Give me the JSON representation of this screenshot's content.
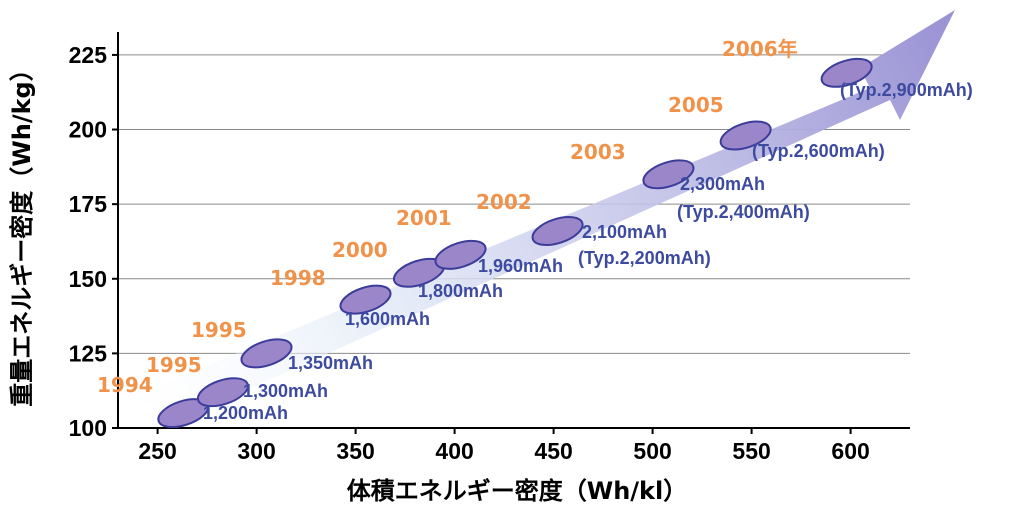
{
  "chart_data": {
    "type": "scatter",
    "title": "",
    "xlabel": "体積エネルギー密度（Wh/kl）",
    "ylabel": "重量エネルギー密度（Wh/kg）",
    "xlim": [
      230,
      630
    ],
    "ylim": [
      100,
      230
    ],
    "xticks": [
      "250",
      "300",
      "350",
      "400",
      "450",
      "500",
      "550",
      "600"
    ],
    "yticks": [
      "100",
      "125",
      "150",
      "175",
      "200",
      "225"
    ],
    "grid": "horizontal",
    "trend": "arrow",
    "colors": {
      "marker_fill": "#9b86c9",
      "marker_stroke": "#3c3c9a",
      "year_label": "#f0924a",
      "capacity_label": "#3c4aa0",
      "arrow": "#9a92d4"
    },
    "points": [
      {
        "year": "1994",
        "capacity": "1,200mAh",
        "x": 263,
        "y": 105
      },
      {
        "year": "1995",
        "capacity": "1,300mAh",
        "x": 283,
        "y": 112
      },
      {
        "year": "1995",
        "capacity": "1,350mAh",
        "x": 305,
        "y": 125
      },
      {
        "year": "1998",
        "capacity": "1,600mAh",
        "x": 355,
        "y": 143
      },
      {
        "year": "2000",
        "capacity": "1,800mAh",
        "x": 382,
        "y": 152
      },
      {
        "year": "2001",
        "capacity": "1,960mAh",
        "x": 403,
        "y": 158
      },
      {
        "year": "2002",
        "capacity": "2,100mAh",
        "x": 452,
        "y": 166
      },
      {
        "year": "2002",
        "capacity": "(Typ.2,200mAh)",
        "x": 452,
        "y": 166
      },
      {
        "year": "2003",
        "capacity": "2,300mAh",
        "x": 508,
        "y": 185
      },
      {
        "year": "2003",
        "capacity": "(Typ.2,400mAh)",
        "x": 508,
        "y": 185
      },
      {
        "year": "2005",
        "capacity": "(Typ.2,600mAh)",
        "x": 547,
        "y": 198
      },
      {
        "year": "2006年",
        "capacity": "(Typ.2,900mAh)",
        "x": 598,
        "y": 219
      }
    ]
  }
}
